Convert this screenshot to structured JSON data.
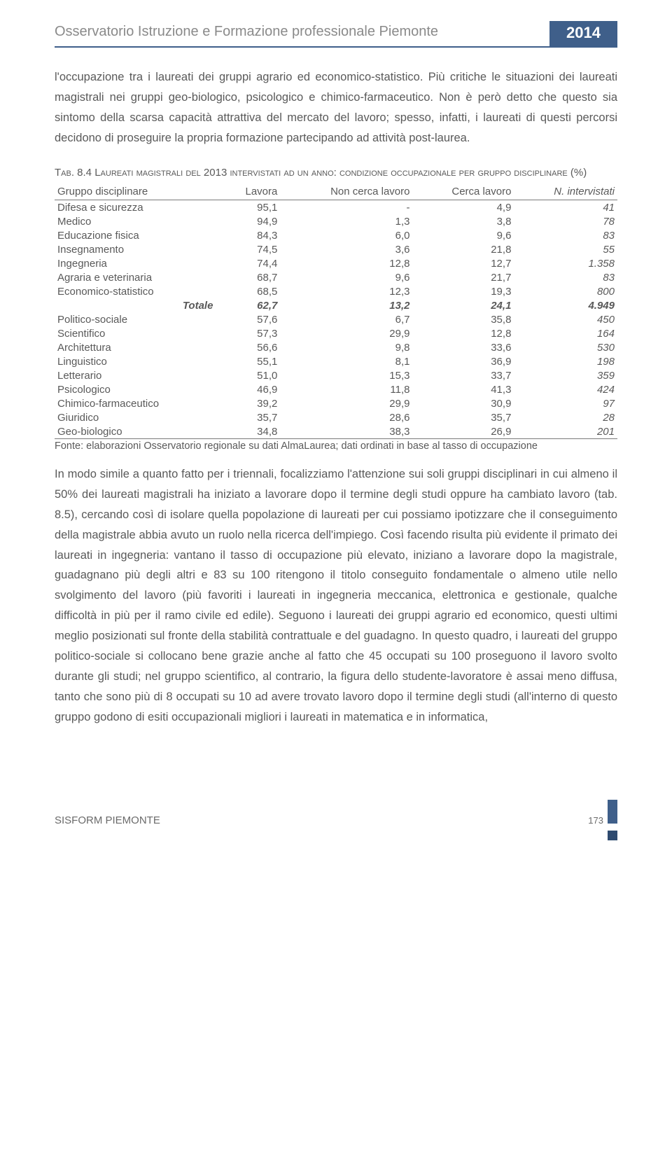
{
  "header": {
    "title": "Osservatorio Istruzione e Formazione professionale Piemonte",
    "year": "2014"
  },
  "para1": "l'occupazione tra i laureati dei gruppi agrario ed economico-statistico. Più critiche le situazioni dei laureati magistrali nei gruppi geo-biologico, psicologico e chimico-farmaceutico. Non è però detto che questo sia sintomo della scarsa capacità attrattiva del mercato del lavoro; spesso, infatti, i laureati di questi percorsi decidono di proseguire la propria formazione partecipando ad attività post-laurea.",
  "table_caption_prefix": "Tab. 8.4 ",
  "table_caption": "Laureati magistrali del 2013 intervistati ad un anno: condizione occupazionale per gruppo disciplinare (%)",
  "table": {
    "columns": [
      "Gruppo disciplinare",
      "Lavora",
      "Non cerca lavoro",
      "Cerca lavoro",
      "N. intervistati"
    ],
    "rows": [
      {
        "label": "Difesa e sicurezza",
        "lavora": "95,1",
        "noncerca": "-",
        "cerca": "4,9",
        "n": "41"
      },
      {
        "label": "Medico",
        "lavora": "94,9",
        "noncerca": "1,3",
        "cerca": "3,8",
        "n": "78"
      },
      {
        "label": "Educazione fisica",
        "lavora": "84,3",
        "noncerca": "6,0",
        "cerca": "9,6",
        "n": "83"
      },
      {
        "label": "Insegnamento",
        "lavora": "74,5",
        "noncerca": "3,6",
        "cerca": "21,8",
        "n": "55"
      },
      {
        "label": "Ingegneria",
        "lavora": "74,4",
        "noncerca": "12,8",
        "cerca": "12,7",
        "n": "1.358"
      },
      {
        "label": "Agraria e veterinaria",
        "lavora": "68,7",
        "noncerca": "9,6",
        "cerca": "21,7",
        "n": "83"
      },
      {
        "label": "Economico-statistico",
        "lavora": "68,5",
        "noncerca": "12,3",
        "cerca": "19,3",
        "n": "800"
      },
      {
        "label": "Totale",
        "lavora": "62,7",
        "noncerca": "13,2",
        "cerca": "24,1",
        "n": "4.949",
        "totale": true
      },
      {
        "label": "Politico-sociale",
        "lavora": "57,6",
        "noncerca": "6,7",
        "cerca": "35,8",
        "n": "450"
      },
      {
        "label": "Scientifico",
        "lavora": "57,3",
        "noncerca": "29,9",
        "cerca": "12,8",
        "n": "164"
      },
      {
        "label": "Architettura",
        "lavora": "56,6",
        "noncerca": "9,8",
        "cerca": "33,6",
        "n": "530"
      },
      {
        "label": "Linguistico",
        "lavora": "55,1",
        "noncerca": "8,1",
        "cerca": "36,9",
        "n": "198"
      },
      {
        "label": "Letterario",
        "lavora": "51,0",
        "noncerca": "15,3",
        "cerca": "33,7",
        "n": "359"
      },
      {
        "label": "Psicologico",
        "lavora": "46,9",
        "noncerca": "11,8",
        "cerca": "41,3",
        "n": "424"
      },
      {
        "label": "Chimico-farmaceutico",
        "lavora": "39,2",
        "noncerca": "29,9",
        "cerca": "30,9",
        "n": "97"
      },
      {
        "label": "Giuridico",
        "lavora": "35,7",
        "noncerca": "28,6",
        "cerca": "35,7",
        "n": "28"
      },
      {
        "label": "Geo-biologico",
        "lavora": "34,8",
        "noncerca": "38,3",
        "cerca": "26,9",
        "n": "201",
        "last": true
      }
    ]
  },
  "table_source": "Fonte: elaborazioni Osservatorio regionale su dati AlmaLaurea; dati ordinati in base al tasso di occupazione",
  "para2": "In modo simile a quanto fatto per i triennali, focalizziamo l'attenzione sui soli gruppi disciplinari in cui almeno il 50% dei laureati magistrali ha iniziato a lavorare dopo il termine degli studi oppure ha cambiato lavoro (tab. 8.5), cercando così di isolare quella popolazione di laureati per cui possiamo ipotizzare che il conseguimento della magistrale abbia avuto un ruolo nella ricerca dell'impiego. Così facendo risulta più evidente il primato dei laureati in ingegneria: vantano il tasso di occupazione più elevato, iniziano a lavorare dopo la magistrale, guadagnano più degli altri e 83 su 100 ritengono il titolo conseguito fondamentale o almeno utile nello svolgimento del lavoro (più favoriti i laureati in ingegneria meccanica, elettronica e gestionale, qualche difficoltà in più per il ramo civile ed edile). Seguono i laureati dei gruppi agrario ed economico, questi ultimi meglio posizionati sul fronte della stabilità contrattuale e del guadagno. In questo quadro, i laureati del gruppo politico-sociale si collocano bene grazie anche al fatto che 45 occupati su 100 proseguono il lavoro svolto durante gli studi; nel gruppo scientifico, al contrario, la figura dello studente-lavoratore è assai meno diffusa, tanto che sono più di 8 occupati su 10 ad avere trovato lavoro dopo il termine degli studi (all'interno di questo gruppo godono di esiti occupazionali migliori i laureati in matematica e in informatica,",
  "footer": {
    "left": "SISFORM PIEMONTE",
    "page": "173"
  }
}
